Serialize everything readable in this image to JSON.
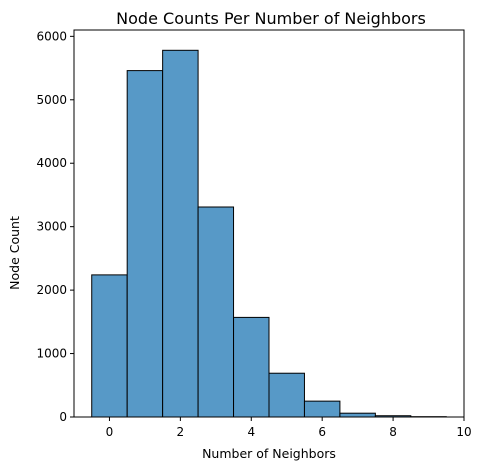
{
  "chart_data": {
    "type": "bar",
    "title": "Node Counts Per Number of Neighbors",
    "xlabel": "Number of Neighbors",
    "ylabel": "Node Count",
    "bins": [
      {
        "x": 0,
        "value": 2240
      },
      {
        "x": 1,
        "value": 5460
      },
      {
        "x": 2,
        "value": 5780
      },
      {
        "x": 3,
        "value": 3310
      },
      {
        "x": 4,
        "value": 1570
      },
      {
        "x": 5,
        "value": 690
      },
      {
        "x": 6,
        "value": 250
      },
      {
        "x": 7,
        "value": 60
      },
      {
        "x": 8,
        "value": 20
      },
      {
        "x": 9,
        "value": 5
      }
    ],
    "bin_width": 1,
    "xlim": [
      -1,
      10
    ],
    "ylim": [
      0,
      6100
    ],
    "xticks": [
      0,
      2,
      4,
      6,
      8,
      10
    ],
    "yticks": [
      0,
      1000,
      2000,
      3000,
      4000,
      5000,
      6000
    ],
    "grid": false,
    "bar_color": "#5799c7",
    "edge_color": "#000000"
  }
}
